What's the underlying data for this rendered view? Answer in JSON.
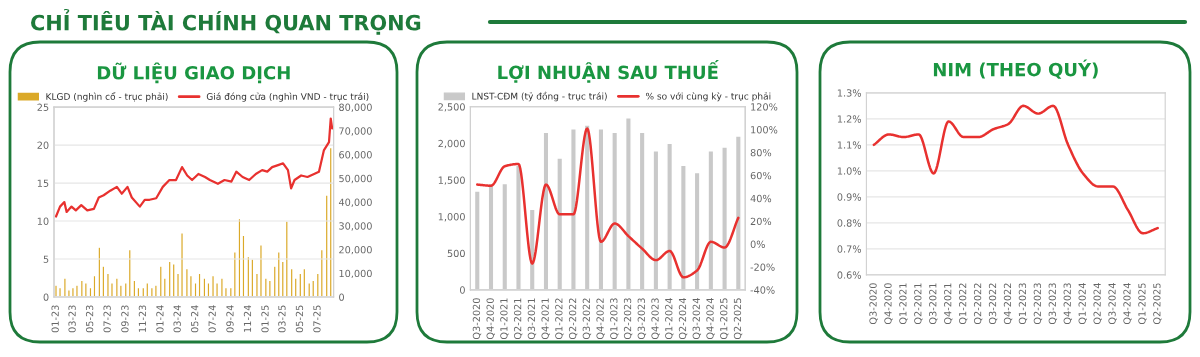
{
  "chart_data": [
    {
      "type": "line",
      "title": "DỮ LIỆU GIAO DỊCH",
      "annotations": [
        "CHỈ TIÊU TÀI CHÍNH QUAN TRỌNG"
      ],
      "series": [
        {
          "name": "KLGD (nghìn cổ - trục phải)",
          "type": "bar",
          "axis": "y2",
          "color": "#dba928",
          "x": [
            "2023-01-01",
            "2023-01-15",
            "2023-02-01",
            "2023-02-15",
            "2023-03-01",
            "2023-03-15",
            "2023-04-01",
            "2023-04-15",
            "2023-05-01",
            "2023-05-15",
            "2023-06-01",
            "2023-06-15",
            "2023-07-01",
            "2023-07-15",
            "2023-08-01",
            "2023-08-15",
            "2023-09-01",
            "2023-09-15",
            "2023-10-01",
            "2023-10-15",
            "2023-11-01",
            "2023-11-15",
            "2023-12-01",
            "2023-12-15",
            "2024-01-01",
            "2024-01-15",
            "2024-02-01",
            "2024-02-15",
            "2024-03-01",
            "2024-03-15",
            "2024-04-01",
            "2024-04-15",
            "2024-05-01",
            "2024-05-15",
            "2024-06-01",
            "2024-06-15",
            "2024-07-01",
            "2024-07-15",
            "2024-08-01",
            "2024-08-15",
            "2024-09-01",
            "2024-09-15",
            "2024-10-01",
            "2024-10-15",
            "2024-11-01",
            "2024-11-15",
            "2024-12-01",
            "2024-12-15",
            "2025-01-01",
            "2025-01-15",
            "2025-02-01",
            "2025-02-15",
            "2025-03-01",
            "2025-03-15",
            "2025-04-01",
            "2025-04-15",
            "2025-05-01",
            "2025-05-15",
            "2025-06-01",
            "2025-06-15",
            "2025-07-01",
            "2025-07-15",
            "2025-08-01",
            "2025-08-15"
          ],
          "values": [
            5000,
            4000,
            8000,
            3000,
            4000,
            5000,
            7000,
            6000,
            4000,
            9000,
            21000,
            13000,
            10000,
            6000,
            8000,
            5000,
            6000,
            20000,
            7000,
            4000,
            4000,
            6000,
            4000,
            5000,
            13000,
            8000,
            15000,
            14000,
            10000,
            27000,
            12000,
            9000,
            6000,
            10000,
            8000,
            6000,
            9000,
            6000,
            8000,
            4000,
            4000,
            19000,
            33000,
            26000,
            17000,
            16000,
            10000,
            22000,
            8000,
            7000,
            13000,
            19000,
            15000,
            32000,
            12000,
            8000,
            10000,
            12000,
            6000,
            7000,
            10000,
            20000,
            43000,
            63000
          ]
        },
        {
          "name": "Giá đóng cửa (nghìn VND - trục trái)",
          "type": "line",
          "color": "#e8312f",
          "x": [
            "2023-01-01",
            "2023-01-15",
            "2023-01-30",
            "2023-02-07",
            "2023-02-24",
            "2023-03-11",
            "2023-03-30",
            "2023-04-20",
            "2023-05-13",
            "2023-05-30",
            "2023-06-16",
            "2023-07-09",
            "2023-08-01",
            "2023-08-18",
            "2023-09-07",
            "2023-09-22",
            "2023-10-20",
            "2023-11-06",
            "2023-11-23",
            "2023-12-16",
            "2024-01-08",
            "2024-01-31",
            "2024-02-23",
            "2024-03-15",
            "2024-04-02",
            "2024-04-19",
            "2024-05-11",
            "2024-06-03",
            "2024-06-20",
            "2024-07-18",
            "2024-08-10",
            "2024-09-03",
            "2024-09-20",
            "2024-10-12",
            "2024-11-04",
            "2024-11-27",
            "2024-12-19",
            "2025-01-06",
            "2025-01-23",
            "2025-02-15",
            "2025-03-02",
            "2025-03-19",
            "2025-03-30",
            "2025-04-11",
            "2025-05-04",
            "2025-05-26",
            "2025-06-18",
            "2025-07-05",
            "2025-07-22",
            "2025-08-09",
            "2025-08-15",
            "2025-08-20"
          ],
          "values": [
            10.6,
            11.9,
            12.5,
            11.2,
            11.9,
            11.4,
            12.1,
            11.4,
            11.6,
            13.1,
            13.4,
            14.0,
            14.5,
            13.6,
            14.5,
            13.1,
            11.9,
            12.8,
            12.8,
            13.0,
            14.5,
            15.4,
            15.4,
            17.1,
            16.0,
            15.4,
            16.2,
            15.8,
            15.4,
            14.9,
            15.4,
            15.2,
            16.5,
            15.8,
            15.4,
            16.2,
            16.7,
            16.5,
            17.1,
            17.4,
            17.6,
            16.7,
            14.3,
            15.4,
            16.0,
            15.8,
            16.2,
            16.5,
            19.3,
            20.4,
            23.5,
            22.2
          ]
        }
      ],
      "xlim": [
        "2022-12-25",
        "2025-08-25"
      ],
      "xticks": [
        {
          "value": "2023-01-01",
          "label": "01-23"
        },
        {
          "value": "2023-03-01",
          "label": "03-23"
        },
        {
          "value": "2023-05-01",
          "label": "05-23"
        },
        {
          "value": "2023-07-01",
          "label": "07-23"
        },
        {
          "value": "2023-09-01",
          "label": "09-23"
        },
        {
          "value": "2023-11-01",
          "label": "11-23"
        },
        {
          "value": "2024-01-01",
          "label": "01-24"
        },
        {
          "value": "2024-03-01",
          "label": "03-24"
        },
        {
          "value": "2024-05-01",
          "label": "05-24"
        },
        {
          "value": "2024-07-01",
          "label": "07-24"
        },
        {
          "value": "2024-09-01",
          "label": "09-24"
        },
        {
          "value": "2024-11-01",
          "label": "11-24"
        },
        {
          "value": "2025-01-01",
          "label": "01-25"
        },
        {
          "value": "2025-03-01",
          "label": "03-25"
        },
        {
          "value": "2025-05-01",
          "label": "05-25"
        },
        {
          "value": "2025-07-01",
          "label": "07-25"
        }
      ],
      "ylim": [
        0,
        25
      ],
      "yticks": [
        0,
        5,
        10,
        15,
        20,
        25
      ],
      "y2lim": [
        0,
        80000
      ],
      "y2ticks": [
        0,
        {
          "value": 10000,
          "label": "10,000"
        },
        {
          "value": 20000,
          "label": "20,000"
        },
        {
          "value": 30000,
          "label": "30,000"
        },
        {
          "value": 40000,
          "label": "40,000"
        },
        {
          "value": 50000,
          "label": "50,000"
        },
        {
          "value": 60000,
          "label": "60,000"
        },
        {
          "value": 70000,
          "label": "70,000"
        },
        {
          "value": 80000,
          "label": "80,000"
        }
      ],
      "grid": "y",
      "legend": "top"
    },
    {
      "type": "bar",
      "title": "LỢI NHUẬN SAU THUẾ",
      "categories": [
        "Q3-2020",
        "Q4-2020",
        "Q1-2021",
        "Q2-2021",
        "Q3-2021",
        "Q4-2021",
        "Q1-2022",
        "Q2-2022",
        "Q3-2022",
        "Q4-2022",
        "Q1-2023",
        "Q2-2023",
        "Q3-2023",
        "Q4-2023",
        "Q1-2024",
        "Q2-2024",
        "Q3-2024",
        "Q4-2024",
        "Q1-2025",
        "Q2-2025"
      ],
      "series": [
        {
          "name": "LNST-CĐM (tỷ đồng - trục trái)",
          "type": "bar",
          "color": "#c9c9c9",
          "values": [
            1350,
            1450,
            1450,
            1700,
            1100,
            2150,
            1800,
            2200,
            2250,
            2200,
            2150,
            2350,
            2150,
            1900,
            2000,
            1700,
            1600,
            1900,
            1950,
            2100
          ]
        },
        {
          "name": "% so với cùng kỳ - trục phải",
          "type": "line",
          "axis": "y2",
          "color": "#e8312f",
          "values": [
            52,
            51,
            68,
            70,
            -17,
            52,
            26,
            26,
            101,
            2,
            18,
            7,
            -4,
            -14,
            -6,
            -29,
            -23,
            2,
            -3,
            23
          ]
        }
      ],
      "ylim": [
        0,
        2500
      ],
      "yticks": [
        0,
        500,
        {
          "value": 1000,
          "label": "1,000"
        },
        {
          "value": 1500,
          "label": "1,500"
        },
        {
          "value": 2000,
          "label": "2,000"
        },
        {
          "value": 2500,
          "label": "2,500"
        }
      ],
      "y2lim": [
        -40,
        120
      ],
      "y2ticks": [
        {
          "value": -40,
          "label": "-40%"
        },
        {
          "value": -20,
          "label": "-20%"
        },
        {
          "value": 0,
          "label": "0%"
        },
        {
          "value": 20,
          "label": "20%"
        },
        {
          "value": 40,
          "label": "40%"
        },
        {
          "value": 60,
          "label": "60%"
        },
        {
          "value": 80,
          "label": "80%"
        },
        {
          "value": 100,
          "label": "100%"
        },
        {
          "value": 120,
          "label": "120%"
        }
      ],
      "legend": "top"
    },
    {
      "type": "line",
      "title": "NIM (THEO QUÝ)",
      "categories": [
        "Q3-2020",
        "Q4-2020",
        "Q1-2021",
        "Q2-2021",
        "Q3-2021",
        "Q4-2021",
        "Q1-2022",
        "Q2-2022",
        "Q3-2022",
        "Q4-2022",
        "Q1-2023",
        "Q2-2023",
        "Q3-2023",
        "Q4-2023",
        "Q1-2024",
        "Q2-2024",
        "Q3-2024",
        "Q4-2024",
        "Q1-2025",
        "Q2-2025"
      ],
      "series": [
        {
          "color": "#e8312f",
          "values": [
            1.1,
            1.14,
            1.13,
            1.14,
            0.99,
            1.19,
            1.13,
            1.13,
            1.16,
            1.18,
            1.25,
            1.22,
            1.25,
            1.1,
            0.99,
            0.94,
            0.94,
            0.85,
            0.76,
            0.78
          ]
        }
      ],
      "ylim": [
        0.6,
        1.3
      ],
      "yticks": [
        {
          "value": 0.6,
          "label": "0.6%"
        },
        {
          "value": 0.7,
          "label": "0.7%"
        },
        {
          "value": 0.8,
          "label": "0.8%"
        },
        {
          "value": 0.9,
          "label": "0.9%"
        },
        {
          "value": 1.0,
          "label": "1.0%"
        },
        {
          "value": 1.1,
          "label": "1.1%"
        },
        {
          "value": 1.2,
          "label": "1.2%"
        },
        {
          "value": 1.3,
          "label": "1.3%"
        }
      ],
      "grid": "y"
    }
  ]
}
